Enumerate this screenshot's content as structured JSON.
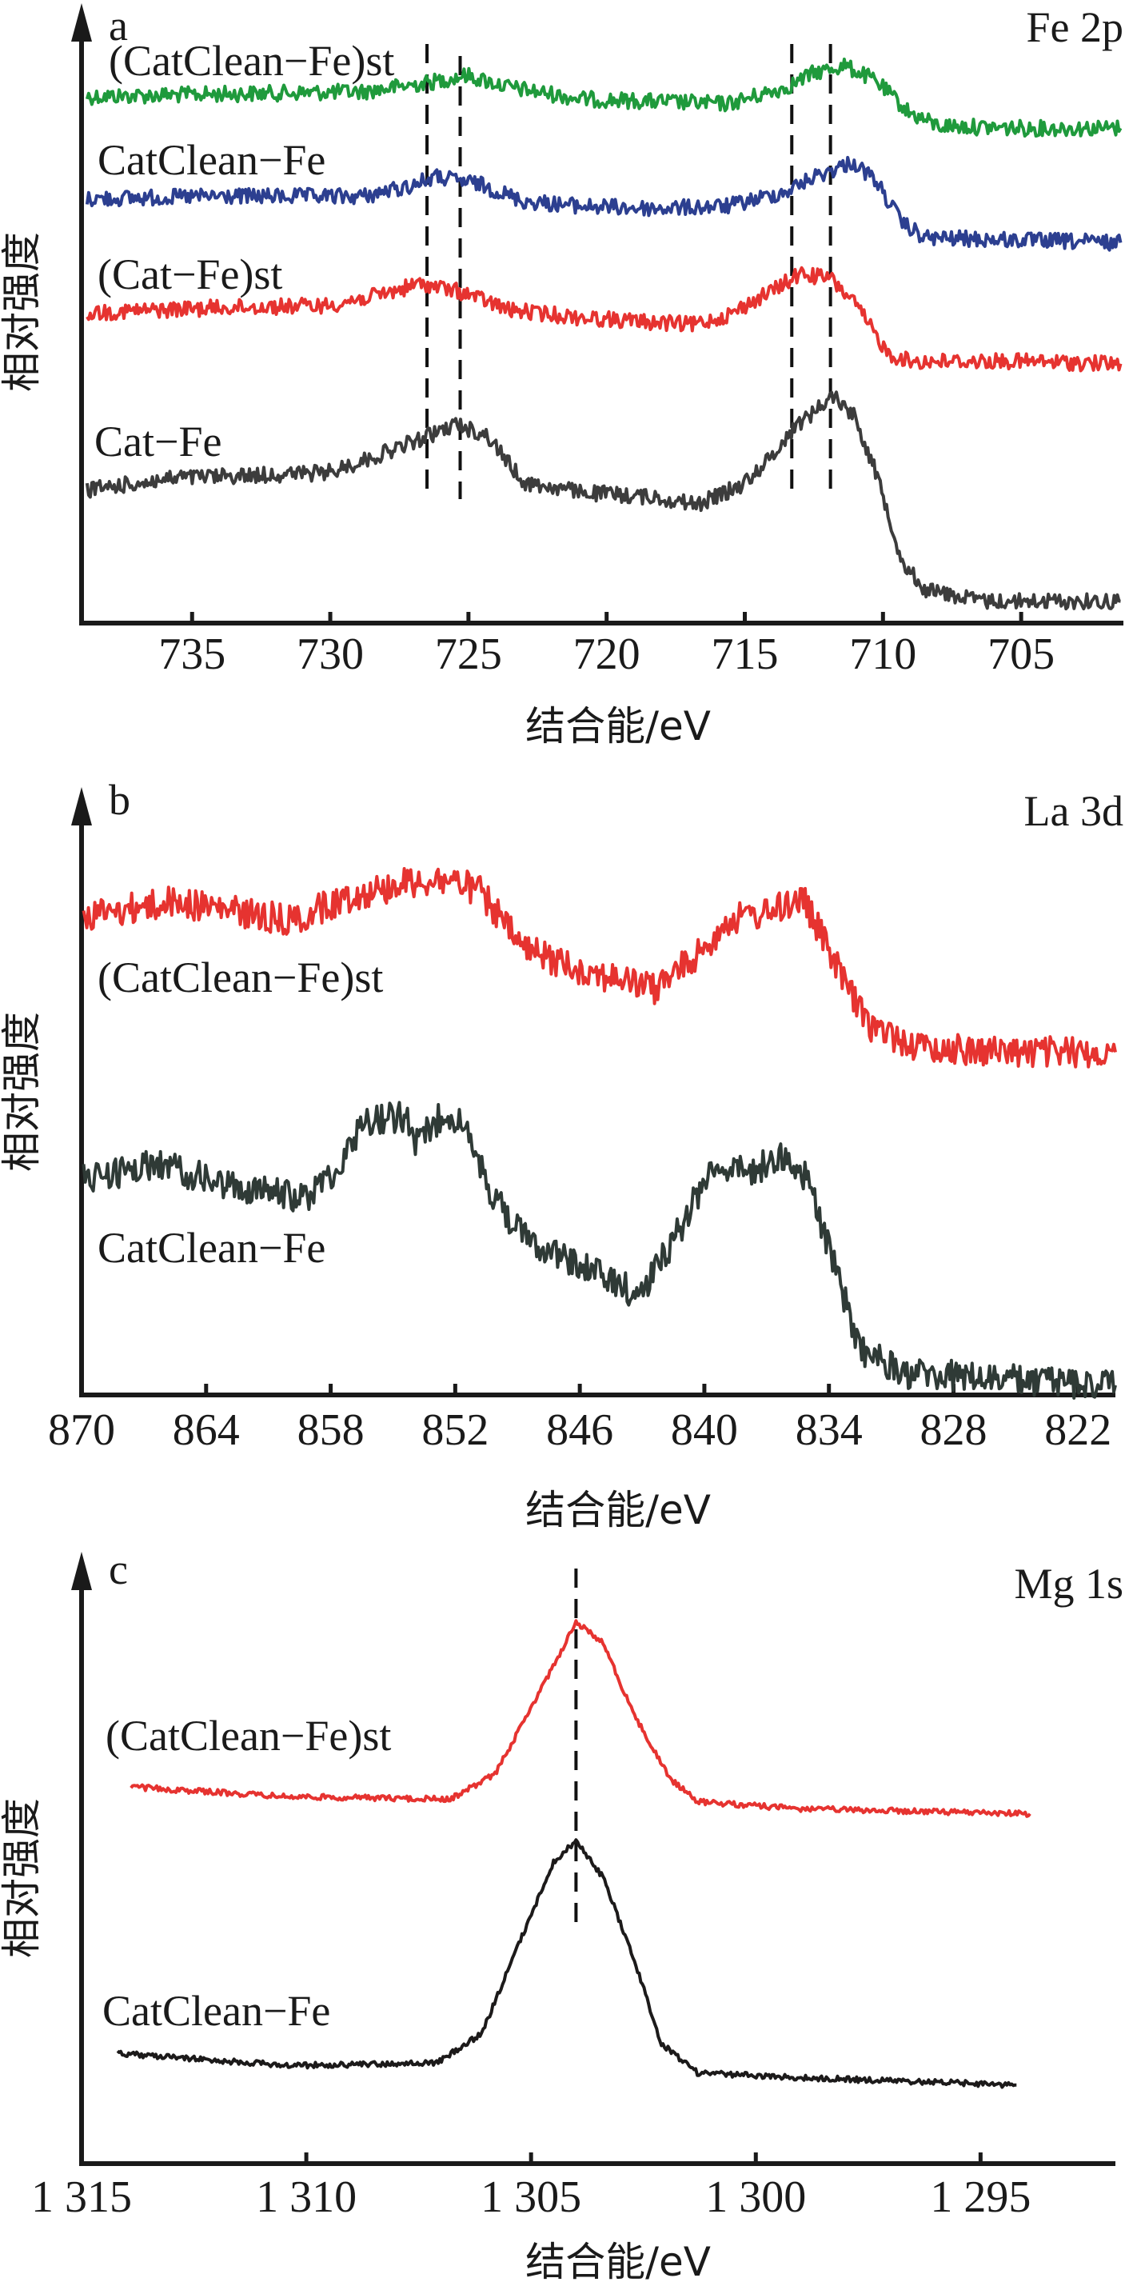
{
  "chart_data": [
    {
      "type": "line",
      "panel_label": "a",
      "annotation": "Fe 2p",
      "xlabel": "结合能/eV",
      "ylabel": "相对强度",
      "xlim": [
        739.0,
        701.3
      ],
      "ylim": [
        0,
        100
      ],
      "x_reversed": true,
      "grid": false,
      "xticks": [
        735,
        730,
        725,
        720,
        715,
        710,
        705
      ],
      "xtick_labels": [
        "735",
        "730",
        "725",
        "720",
        "715",
        "710",
        "705"
      ],
      "reference_lines_eV": [
        726.5,
        725.3,
        713.3,
        711.9
      ],
      "series": [
        {
          "name": "(CatClean−Fe)st",
          "color": "#1f9a3c",
          "x": [
            738.8,
            734.1,
            728.8,
            726.4,
            725.1,
            723.5,
            720.9,
            718.3,
            715.6,
            713.5,
            712.5,
            711.4,
            710.3,
            709.0,
            708.0,
            705.1,
            701.4
          ],
          "y": [
            86.5,
            86.9,
            87.3,
            88.8,
            90.0,
            88.0,
            86.1,
            85.7,
            85.3,
            88.0,
            90.4,
            91.6,
            89.2,
            83.7,
            81.7,
            81.3,
            81.3
          ]
        },
        {
          "name": "CatClean−Fe",
          "color": "#2c3f90",
          "x": [
            738.8,
            734.1,
            728.8,
            727.2,
            726.2,
            724.6,
            723.0,
            720.9,
            718.3,
            715.6,
            713.5,
            712.5,
            711.1,
            710.3,
            709.3,
            708.5,
            705.1,
            701.4
          ],
          "y": [
            69.7,
            70.1,
            70.1,
            71.7,
            73.3,
            72.1,
            69.3,
            68.5,
            68.1,
            68.5,
            70.9,
            73.3,
            75.7,
            72.9,
            65.7,
            63.3,
            62.9,
            62.5
          ]
        },
        {
          "name": "(Cat−Fe)st",
          "color": "#e63330",
          "x": [
            738.8,
            734.1,
            730.1,
            728.3,
            726.7,
            725.1,
            723.5,
            720.9,
            718.3,
            716.9,
            715.6,
            714.0,
            713.0,
            711.9,
            711.1,
            709.8,
            709.0,
            705.1,
            701.4
          ],
          "y": [
            51.0,
            51.8,
            52.2,
            53.8,
            55.8,
            54.2,
            51.4,
            50.2,
            49.4,
            49.0,
            50.6,
            54.6,
            57.4,
            56.6,
            53.0,
            44.2,
            43.0,
            43.0,
            42.6
          ]
        },
        {
          "name": "Cat−Fe",
          "color": "#3c3c3c",
          "x": [
            738.8,
            735.4,
            730.1,
            728.3,
            726.7,
            725.4,
            724.3,
            723.0,
            720.9,
            718.3,
            716.7,
            715.1,
            714.0,
            713.2,
            712.5,
            711.8,
            711.0,
            710.1,
            709.3,
            708.5,
            706.4,
            701.4
          ],
          "y": [
            21.9,
            23.9,
            24.7,
            27.5,
            30.3,
            32.7,
            30.7,
            23.1,
            21.5,
            20.7,
            19.5,
            22.7,
            27.5,
            32.3,
            34.7,
            37.5,
            33.9,
            22.7,
            10.0,
            5.6,
            3.6,
            3.6
          ]
        }
      ]
    },
    {
      "type": "line",
      "panel_label": "b",
      "annotation": "La 3d",
      "xlabel": "结合能/eV",
      "ylabel": "相对强度",
      "xlim": [
        870,
        820.2
      ],
      "ylim": [
        0,
        100
      ],
      "x_reversed": true,
      "grid": false,
      "xticks": [
        870,
        864,
        858,
        852,
        846,
        840,
        834,
        828,
        822
      ],
      "xtick_labels": [
        "870",
        "864",
        "858",
        "852",
        "846",
        "840",
        "834",
        "828",
        "822"
      ],
      "series": [
        {
          "name": "(CatClean−Fe)st",
          "color": "#e63330",
          "x": [
            869.9,
            865.5,
            859.9,
            857.1,
            854.3,
            852.2,
            850.8,
            848.7,
            845.9,
            842.4,
            840.3,
            838.9,
            836.7,
            835.3,
            833.9,
            832.2,
            829.7,
            824.8,
            820.2
          ],
          "y": [
            79.1,
            81.5,
            78.3,
            82.3,
            84.7,
            85.1,
            83.1,
            73.5,
            70.3,
            67.1,
            72.7,
            78.3,
            79.9,
            82.3,
            72.7,
            61.4,
            57.4,
            56.6,
            56.6
          ]
        },
        {
          "name": "CatClean−Fe",
          "color": "#2f3a36",
          "x": [
            869.9,
            866.2,
            863.4,
            859.2,
            857.5,
            856.4,
            854.3,
            854.0,
            852.5,
            851.8,
            850.1,
            848.7,
            845.9,
            843.1,
            841.0,
            839.6,
            837.8,
            836.4,
            835.0,
            833.9,
            832.5,
            830.4,
            824.8,
            820.2
          ],
          "y": [
            35.7,
            38.2,
            34.9,
            32.5,
            38.2,
            45.4,
            46.2,
            40.6,
            47.0,
            45.4,
            32.5,
            26.1,
            21.3,
            16.5,
            28.5,
            38.2,
            36.5,
            39.8,
            35.7,
            22.9,
            7.6,
            3.6,
            2.4,
            1.6
          ]
        }
      ]
    },
    {
      "type": "line",
      "panel_label": "c",
      "annotation": "Mg 1s",
      "xlabel": "结合能/eV",
      "ylabel": "相对强度",
      "xlim": [
        1315,
        1292
      ],
      "ylim": [
        0,
        100
      ],
      "x_reversed": true,
      "grid": false,
      "xticks": [
        1315,
        1310,
        1305,
        1300,
        1295
      ],
      "xtick_labels": [
        "1 315",
        "1 310",
        "1 305",
        "1 300",
        "1 295"
      ],
      "reference_lines_eV": [
        1304.0
      ],
      "series": [
        {
          "name": "(CatClean−Fe)st",
          "color": "#e63330",
          "x": [
            1313.9,
            1310.4,
            1306.8,
            1305.8,
            1304.8,
            1304.0,
            1303.4,
            1302.7,
            1301.9,
            1301.3,
            1299.0,
            1293.9
          ],
          "y": [
            61.8,
            60.2,
            59.8,
            63.9,
            77.5,
            88.8,
            85.5,
            73.5,
            63.1,
            59.4,
            58.2,
            57.4
          ]
        },
        {
          "name": "CatClean−Fe",
          "color": "#1c1a1a",
          "x": [
            1314.2,
            1310.4,
            1307.1,
            1306.1,
            1305.2,
            1304.5,
            1304.0,
            1303.4,
            1302.7,
            1302.1,
            1301.3,
            1299.0,
            1294.2
          ],
          "y": [
            18.1,
            16.1,
            16.5,
            21.3,
            37.3,
            49.4,
            53.0,
            47.0,
            33.3,
            19.7,
            14.9,
            14.1,
            12.9
          ]
        }
      ]
    }
  ]
}
